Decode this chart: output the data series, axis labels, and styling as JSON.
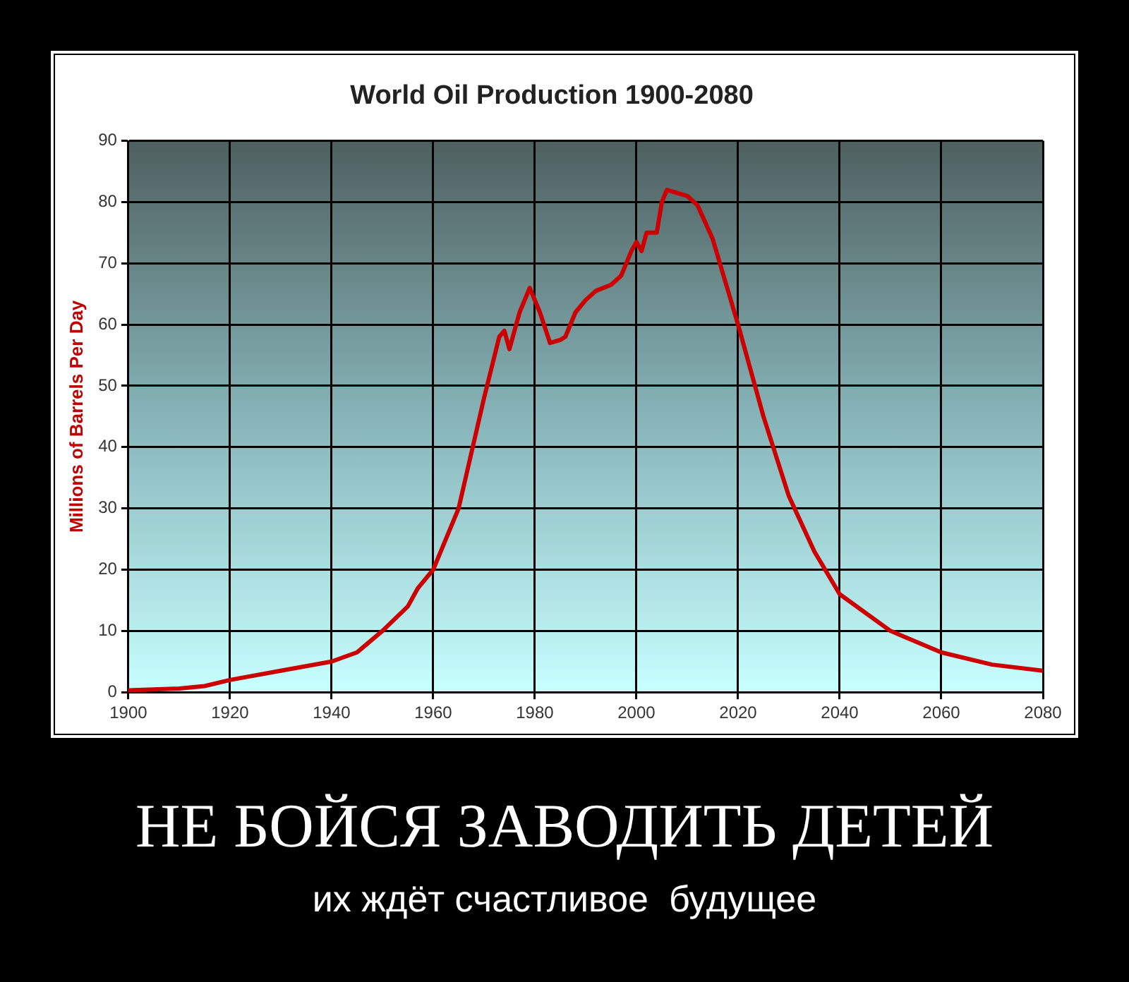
{
  "chart_data": {
    "type": "line",
    "title": "World Oil Production 1900-2080",
    "ylabel": "Millions of Barrels Per Day",
    "x": [
      1900,
      1910,
      1915,
      1920,
      1930,
      1940,
      1945,
      1950,
      1955,
      1957,
      1960,
      1965,
      1970,
      1973,
      1974,
      1975,
      1977,
      1979,
      1981,
      1983,
      1985,
      1986,
      1988,
      1990,
      1992,
      1995,
      1997,
      1999,
      2000,
      2001,
      2002,
      2004,
      2005,
      2006,
      2010,
      2012,
      2015,
      2020,
      2025,
      2030,
      2035,
      2040,
      2050,
      2060,
      2070,
      2080
    ],
    "series": [
      {
        "color": "#cc0000",
        "values": [
          0.3,
          0.6,
          1,
          2,
          3.5,
          5,
          6.5,
          10,
          14,
          17,
          20,
          30,
          48,
          58,
          59,
          56,
          62,
          66,
          62,
          57,
          57.5,
          58,
          62,
          64,
          65.5,
          66.5,
          68,
          72,
          73.5,
          72,
          75,
          75,
          80,
          82,
          81,
          79.5,
          74,
          60,
          45,
          32,
          23,
          16,
          10,
          6.5,
          4.5,
          3.5
        ]
      }
    ],
    "xlim": [
      1900,
      2080
    ],
    "xticks": [
      1900,
      1920,
      1940,
      1960,
      1980,
      2000,
      2020,
      2040,
      2060,
      2080
    ],
    "ylim": [
      0,
      90
    ],
    "yticks": [
      0,
      10,
      20,
      30,
      40,
      50,
      60,
      70,
      80,
      90
    ],
    "grid": true,
    "legend": false,
    "marker": "none",
    "line_style": "solid",
    "annotations": [
      "НЕ БОЙСЯ ЗАВОДИТЬ ДЕТЕЙ",
      "их ждёт счастливое  будущее"
    ]
  }
}
